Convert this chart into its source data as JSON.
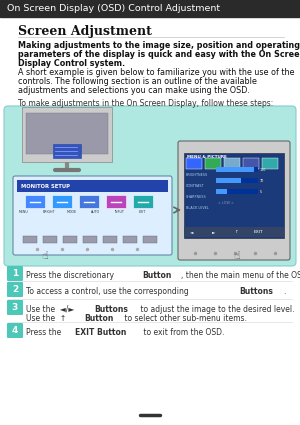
{
  "title_bar_text": "On Screen Display (OSD) Control Adjustment",
  "title_bar_bg": "#2a2a2a",
  "title_bar_text_color": "#ffffff",
  "section_title": "Screen Adjustment",
  "body_bold_line1": "Making adjustments to the image size, position and operating",
  "body_bold_line2": "parameters of the display is quick and easy with the On Screen",
  "body_bold_line3": "Display Control system.",
  "body_norm_line1": "A short example is given below to familiarize you with the use of the",
  "body_norm_line2": "controls. The following section is an outline of the available",
  "body_norm_line3": "adjustments and selections you can make using the OSD.",
  "step_intro": "To make adjustments in the On Screen Display, follow these steps:",
  "diagram_bg": "#aee8e0",
  "diagram_border": "#88cccc",
  "step_color": "#4dc8b8",
  "step1_pre": "Press the discretionary ",
  "step1_bold": "Button",
  "step1_post": ", then the main menu of the OSD appears.",
  "step2_pre": "To access a control, use the corresponding ",
  "step2_bold": "Buttons",
  "step2_post": ".",
  "step3_line1_pre": "Use the  ◄/►  ",
  "step3_line1_bold": "Buttons",
  "step3_line1_post": " to adjust the image to the desired level.",
  "step3_line2_pre": "Use the  ↑  ",
  "step3_line2_bold": "Button",
  "step3_line2_post": " to select other sub-menu items.",
  "step4_pre": "Press the ",
  "step4_bold": "EXIT Button",
  "step4_post": " to exit from the OSD.",
  "background_color": "#ffffff",
  "monitor_body_color": "#888888",
  "monitor_screen_color": "#bbbbcc",
  "monitor_stand_color": "#666666",
  "panel_bg": "#e8eef8",
  "panel_title_bg": "#2244aa",
  "panel_border": "#6688aa",
  "icon_colors": [
    "#4488ff",
    "#3399ff",
    "#4477dd",
    "#bb44bb",
    "#22aaaa"
  ],
  "osd_bg": "#1a3a7a",
  "osd_screen_bg": "#2244aa",
  "tab_colors": [
    "#3366ff",
    "#33aa55",
    "#77aacc",
    "#4455aa",
    "#33aaaa"
  ],
  "bar_bg": "#003399",
  "bar_fill": "#4499ff",
  "bar_values": [
    0.9,
    0.6,
    0.25
  ],
  "bar_labels": [
    "100",
    "70",
    "5"
  ],
  "bottom_bar_bg": "#334466",
  "arrow_color": "#666666"
}
